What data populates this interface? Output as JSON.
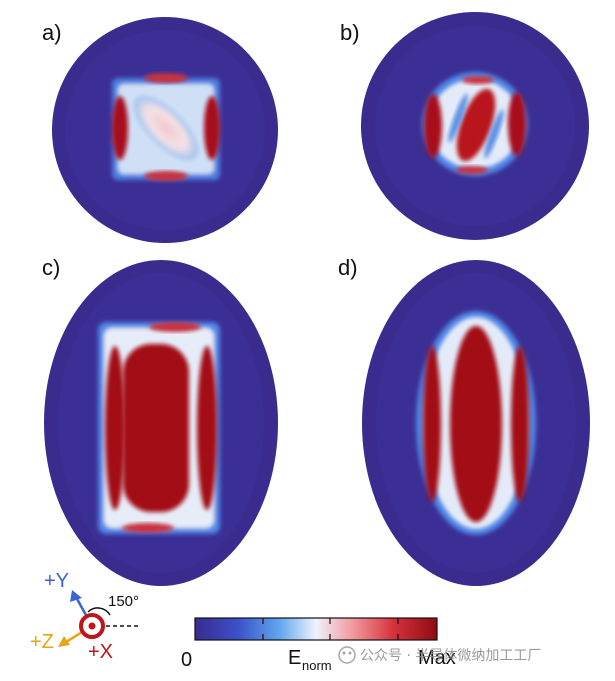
{
  "panels": [
    {
      "label": "a)"
    },
    {
      "label": "b)"
    },
    {
      "label": "c)"
    },
    {
      "label": "d)"
    }
  ],
  "axes": {
    "y_label": "+Y",
    "z_label": "+Z",
    "x_label": "+X",
    "angle_label": "150°",
    "colors": {
      "y": "#3a63d8",
      "z": "#e8a317",
      "x": "#c0141a"
    }
  },
  "colorbar": {
    "min_label": "0",
    "quantity_label": "E",
    "quantity_subscript": "norm",
    "max_label": "Max",
    "colors": [
      "#3a2a8f",
      "#3b52c8",
      "#62a7ee",
      "#eef3fb",
      "#f19aa0",
      "#d6323b",
      "#8f0b15"
    ]
  },
  "watermark": {
    "text": "公众号 · 半导体微纳加工工厂"
  },
  "palette": {
    "background_field": "#3a2c8e",
    "hot": "#b0111c",
    "mid": "#e9eef7",
    "cool": "#4f86e6"
  }
}
